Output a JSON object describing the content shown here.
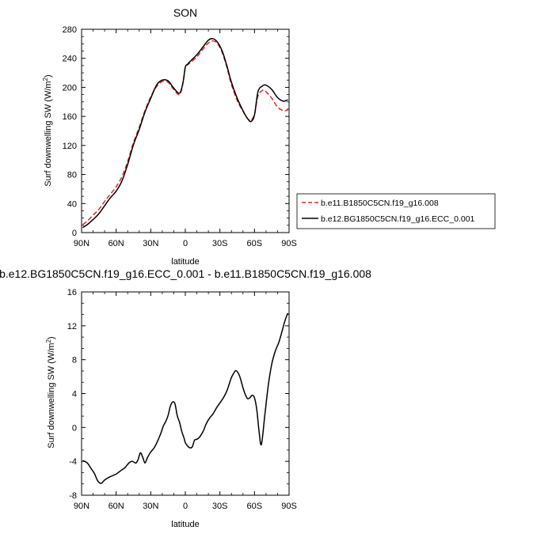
{
  "chart_data": [
    {
      "type": "line",
      "title": "SON",
      "xlabel": "latitude",
      "ylabel": "Surf downwelling SW (W/m²)",
      "ylabel_main": "Surf downwelling SW (W/m",
      "ylabel_sup": "2",
      "ylabel_close": ")",
      "xlim": [
        90,
        -90
      ],
      "ylim": [
        0,
        280
      ],
      "x_ticks": [
        90,
        60,
        30,
        0,
        -30,
        -60,
        -90
      ],
      "x_tick_labels": [
        "90N",
        "60N",
        "30N",
        "0",
        "30S",
        "60S",
        "90S"
      ],
      "y_ticks": [
        0,
        40,
        80,
        120,
        160,
        200,
        240,
        280
      ],
      "y_tick_labels": [
        "0",
        "40",
        "80",
        "120",
        "160",
        "200",
        "240",
        "280"
      ],
      "legend_position": "right",
      "series": [
        {
          "name": "b.e11.B1850C5CN.f19_g16.008",
          "color": "#e8251b",
          "dash": true,
          "x": [
            89,
            85,
            80,
            75,
            70,
            65,
            60,
            55,
            50,
            45,
            40,
            35,
            30,
            25,
            20,
            15,
            10,
            5,
            2,
            0,
            -2,
            -5,
            -10,
            -15,
            -20,
            -24,
            -28,
            -32,
            -36,
            -40,
            -45,
            -50,
            -54,
            -57,
            -60,
            -63,
            -67,
            -70,
            -75,
            -80,
            -85,
            -89
          ],
          "y": [
            11,
            16,
            24,
            32,
            43,
            53,
            63,
            77,
            98,
            124,
            145,
            168,
            187,
            201,
            208,
            207,
            197,
            190,
            206,
            228,
            231,
            235,
            242,
            252,
            261,
            264,
            260,
            248,
            228,
            204,
            182,
            167,
            157,
            155,
            163,
            188,
            196,
            194,
            185,
            173,
            168,
            169
          ]
        },
        {
          "name": "b.e12.BG1850C5CN.f19_g16.ECC_0.001",
          "color": "#000000",
          "dash": false,
          "x": [
            89,
            85,
            80,
            75,
            70,
            65,
            60,
            55,
            50,
            45,
            40,
            35,
            30,
            25,
            20,
            15,
            10,
            5,
            2,
            0,
            -2,
            -5,
            -10,
            -15,
            -20,
            -24,
            -28,
            -32,
            -36,
            -40,
            -45,
            -50,
            -54,
            -57,
            -60,
            -63,
            -67,
            -70,
            -75,
            -80,
            -85,
            -89
          ],
          "y": [
            7,
            11,
            18,
            26,
            37,
            48,
            57,
            71,
            94,
            121,
            142,
            166,
            185,
            203,
            210,
            209,
            199,
            192,
            207,
            228,
            232,
            237,
            245,
            255,
            265,
            267,
            262,
            250,
            230,
            207,
            185,
            168,
            157,
            153,
            162,
            194,
            202,
            203,
            197,
            186,
            181,
            183
          ]
        }
      ]
    },
    {
      "type": "line",
      "title": "b.e12.BG1850C5CN.f19_g16.ECC_0.001 - b.e11.B1850C5CN.f19_g16.008",
      "xlabel": "latitude",
      "ylabel": "Surf downwelling SW (W/m²)",
      "ylabel_main": "Surf downwelling SW (W/m",
      "ylabel_sup": "2",
      "ylabel_close": ")",
      "xlim": [
        90,
        -90
      ],
      "ylim": [
        -8,
        16
      ],
      "x_ticks": [
        90,
        60,
        30,
        0,
        -30,
        -60,
        -90
      ],
      "x_tick_labels": [
        "90N",
        "60N",
        "30N",
        "0",
        "30S",
        "60S",
        "90S"
      ],
      "y_ticks": [
        -8,
        -4,
        0,
        4,
        8,
        12,
        16
      ],
      "y_tick_labels": [
        "-8",
        "-4",
        "0",
        "4",
        "8",
        "12",
        "16"
      ],
      "series": [
        {
          "color": "#000000",
          "dash": false,
          "x": [
            89,
            85,
            82,
            79,
            76,
            73,
            70,
            65,
            60,
            57,
            55,
            52,
            49,
            46,
            43,
            41,
            39,
            37,
            35,
            33,
            30,
            27,
            24,
            21,
            19,
            17,
            15,
            13,
            11,
            9,
            7,
            5,
            3,
            1,
            0,
            -2,
            -4,
            -6,
            -8,
            -10,
            -12,
            -14,
            -16,
            -18,
            -21,
            -24,
            -27,
            -30,
            -33,
            -36,
            -38,
            -40,
            -42,
            -44,
            -47,
            -50,
            -52,
            -54,
            -56,
            -58,
            -60,
            -62,
            -64,
            -66,
            -69,
            -72,
            -75,
            -78,
            -81,
            -84,
            -86,
            -88,
            -89
          ],
          "y": [
            -3.9,
            -4.2,
            -4.8,
            -5.4,
            -6.3,
            -6.6,
            -6.2,
            -5.8,
            -5.5,
            -5.2,
            -5.0,
            -4.7,
            -4.2,
            -4.0,
            -4.2,
            -3.8,
            -3.0,
            -3.5,
            -4.2,
            -3.6,
            -2.9,
            -2.4,
            -1.6,
            -0.6,
            0.2,
            0.7,
            1.4,
            2.5,
            3.0,
            2.8,
            1.4,
            0.6,
            -0.5,
            -1.3,
            -1.8,
            -2.2,
            -2.4,
            -2.3,
            -1.5,
            -1.4,
            -1.2,
            -0.8,
            -0.3,
            0.4,
            1.1,
            1.6,
            2.3,
            2.9,
            3.5,
            4.3,
            5.1,
            5.9,
            6.4,
            6.7,
            6.1,
            4.7,
            3.9,
            3.4,
            3.5,
            3.8,
            3.5,
            2.1,
            -0.5,
            -2.0,
            1.5,
            5.0,
            7.5,
            9.0,
            10.0,
            11.4,
            12.4,
            13.2,
            13.5
          ]
        }
      ]
    }
  ]
}
